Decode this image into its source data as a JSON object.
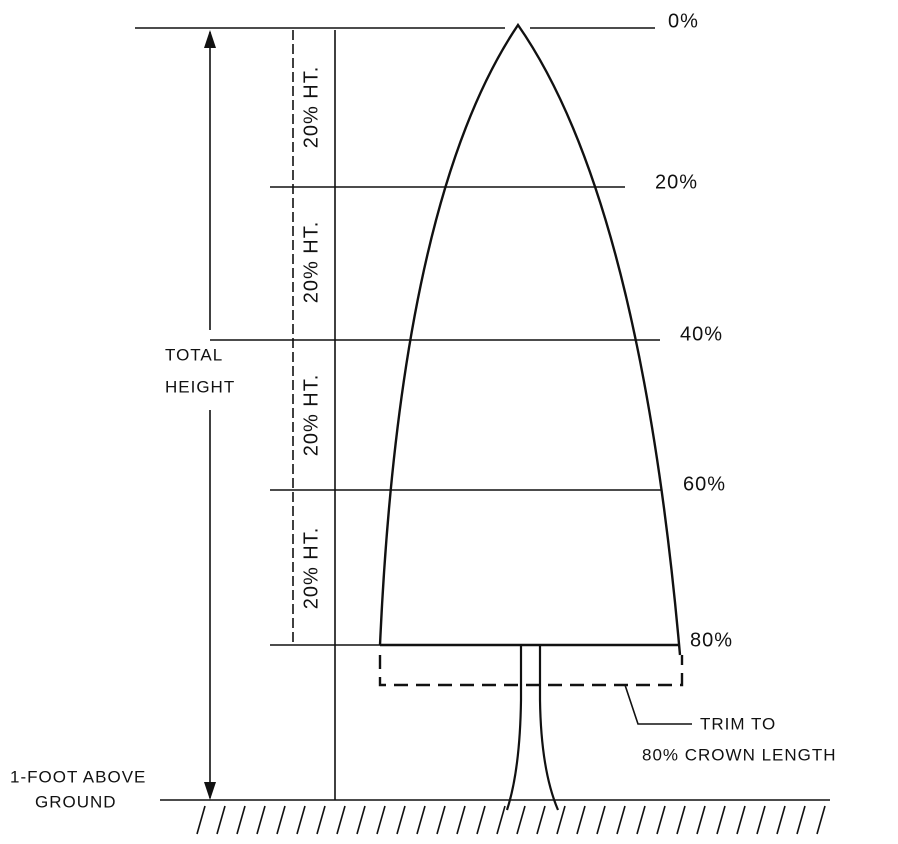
{
  "levels": [
    "0%",
    "20%",
    "40%",
    "60%",
    "80%"
  ],
  "segments": [
    "20% HT.",
    "20% HT.",
    "20% HT.",
    "20% HT."
  ],
  "total_height": [
    "TOTAL",
    "HEIGHT"
  ],
  "trim_note": [
    "TRIM TO",
    "80% CROWN LENGTH"
  ],
  "ground_note": [
    "1-FOOT ABOVE",
    "GROUND"
  ]
}
